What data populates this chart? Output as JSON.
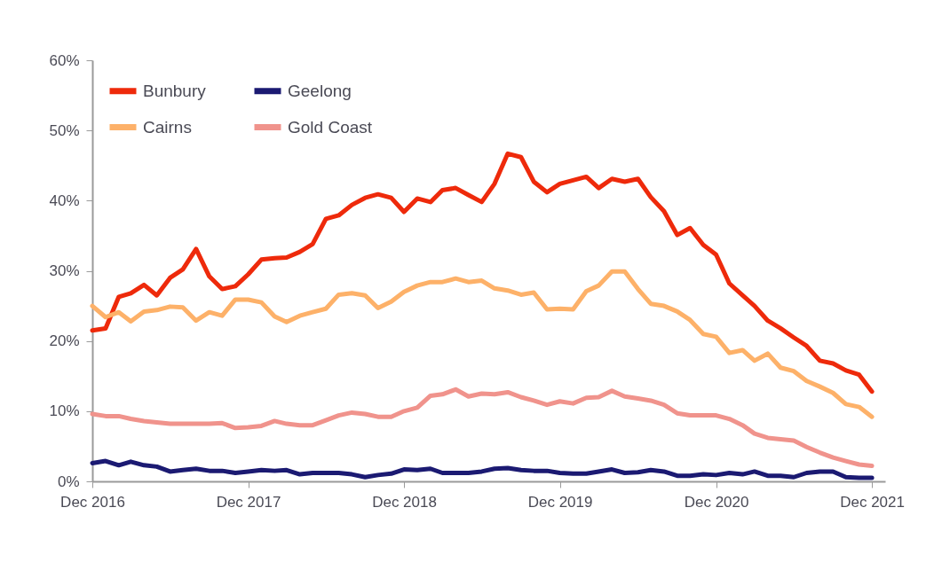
{
  "chart_data": {
    "type": "line",
    "x": [
      "2016-12",
      "2017-01",
      "2017-02",
      "2017-03",
      "2017-04",
      "2017-05",
      "2017-06",
      "2017-07",
      "2017-08",
      "2017-09",
      "2017-10",
      "2017-11",
      "2017-12",
      "2018-01",
      "2018-02",
      "2018-03",
      "2018-04",
      "2018-05",
      "2018-06",
      "2018-07",
      "2018-08",
      "2018-09",
      "2018-10",
      "2018-11",
      "2018-12",
      "2019-01",
      "2019-02",
      "2019-03",
      "2019-04",
      "2019-05",
      "2019-06",
      "2019-07",
      "2019-08",
      "2019-09",
      "2019-10",
      "2019-11",
      "2019-12",
      "2020-01",
      "2020-02",
      "2020-03",
      "2020-04",
      "2020-05",
      "2020-06",
      "2020-07",
      "2020-08",
      "2020-09",
      "2020-10",
      "2020-11",
      "2020-12",
      "2021-01",
      "2021-02",
      "2021-03",
      "2021-04",
      "2021-05",
      "2021-06",
      "2021-07",
      "2021-08",
      "2021-09",
      "2021-10",
      "2021-11",
      "2021-12"
    ],
    "series": [
      {
        "name": "Bunbury",
        "color": "#ee2a0b",
        "values": [
          21.5,
          21.8,
          26.3,
          26.8,
          28.0,
          26.5,
          29.0,
          30.2,
          33.1,
          29.2,
          27.4,
          27.8,
          29.5,
          31.6,
          31.8,
          31.9,
          32.7,
          33.8,
          37.4,
          37.9,
          39.4,
          40.4,
          40.9,
          40.4,
          38.4,
          40.3,
          39.8,
          41.5,
          41.8,
          40.8,
          39.8,
          42.4,
          46.7,
          46.2,
          42.7,
          41.2,
          42.4,
          42.9,
          43.4,
          41.8,
          43.1,
          42.7,
          43.1,
          40.5,
          38.5,
          35.1,
          36.1,
          33.7,
          32.3,
          28.2,
          26.5,
          25.0,
          22.9,
          21.8,
          20.5,
          19.3,
          17.2,
          16.8,
          15.8,
          15.2,
          12.8
        ]
      },
      {
        "name": "Geelong",
        "color": "#1b1a72",
        "values": [
          2.6,
          2.9,
          2.3,
          2.8,
          2.3,
          2.1,
          1.4,
          1.6,
          1.8,
          1.5,
          1.5,
          1.2,
          1.4,
          1.6,
          1.5,
          1.6,
          1.0,
          1.2,
          1.2,
          1.2,
          1.0,
          0.6,
          0.9,
          1.1,
          1.7,
          1.6,
          1.8,
          1.2,
          1.2,
          1.2,
          1.4,
          1.8,
          1.9,
          1.6,
          1.5,
          1.5,
          1.2,
          1.1,
          1.1,
          1.4,
          1.7,
          1.2,
          1.3,
          1.6,
          1.4,
          0.8,
          0.8,
          1.0,
          0.9,
          1.2,
          1.0,
          1.4,
          0.8,
          0.8,
          0.6,
          1.2,
          1.4,
          1.4,
          0.6,
          0.5,
          0.5
        ]
      },
      {
        "name": "Cairns",
        "color": "#fdb169",
        "values": [
          25.0,
          23.4,
          24.1,
          22.8,
          24.2,
          24.4,
          24.9,
          24.8,
          22.9,
          24.1,
          23.6,
          25.9,
          25.9,
          25.5,
          23.5,
          22.7,
          23.6,
          24.1,
          24.6,
          26.6,
          26.8,
          26.5,
          24.7,
          25.6,
          27.0,
          27.9,
          28.4,
          28.4,
          28.9,
          28.4,
          28.6,
          27.5,
          27.2,
          26.6,
          26.9,
          24.5,
          24.6,
          24.5,
          27.1,
          27.9,
          29.9,
          29.9,
          27.4,
          25.3,
          25.0,
          24.2,
          23.0,
          21.0,
          20.6,
          18.3,
          18.7,
          17.2,
          18.2,
          16.2,
          15.7,
          14.3,
          13.5,
          12.6,
          11.0,
          10.6,
          9.2
        ]
      },
      {
        "name": "Gold Coast",
        "color": "#f0938c",
        "values": [
          9.6,
          9.3,
          9.3,
          8.9,
          8.6,
          8.4,
          8.2,
          8.2,
          8.2,
          8.2,
          8.3,
          7.6,
          7.7,
          7.9,
          8.6,
          8.2,
          8.0,
          8.0,
          8.7,
          9.4,
          9.8,
          9.6,
          9.2,
          9.2,
          10.0,
          10.5,
          12.2,
          12.4,
          13.1,
          12.1,
          12.5,
          12.4,
          12.7,
          12.0,
          11.5,
          10.9,
          11.4,
          11.1,
          11.9,
          12.0,
          12.9,
          12.1,
          11.8,
          11.5,
          10.9,
          9.7,
          9.4,
          9.4,
          9.4,
          8.9,
          8.0,
          6.8,
          6.2,
          6.0,
          5.8,
          4.9,
          4.1,
          3.4,
          2.9,
          2.4,
          2.2
        ]
      }
    ],
    "xlim": [
      "2016-12",
      "2022-01"
    ],
    "xticks": [
      {
        "value": "2016-12",
        "label": "Dec 2016"
      },
      {
        "value": "2017-12",
        "label": "Dec 2017"
      },
      {
        "value": "2018-12",
        "label": "Dec 2018"
      },
      {
        "value": "2019-12",
        "label": "Dec 2019"
      },
      {
        "value": "2020-12",
        "label": "Dec 2020"
      },
      {
        "value": "2021-12",
        "label": "Dec 2021"
      }
    ],
    "ylim": [
      0,
      60
    ],
    "yticks": [
      {
        "value": 0,
        "label": "0%"
      },
      {
        "value": 10,
        "label": "10%"
      },
      {
        "value": 20,
        "label": "20%"
      },
      {
        "value": 30,
        "label": "30%"
      },
      {
        "value": 40,
        "label": "40%"
      },
      {
        "value": 50,
        "label": "50%"
      },
      {
        "value": 60,
        "label": "60%"
      }
    ],
    "grid": false,
    "legend": "top left"
  }
}
